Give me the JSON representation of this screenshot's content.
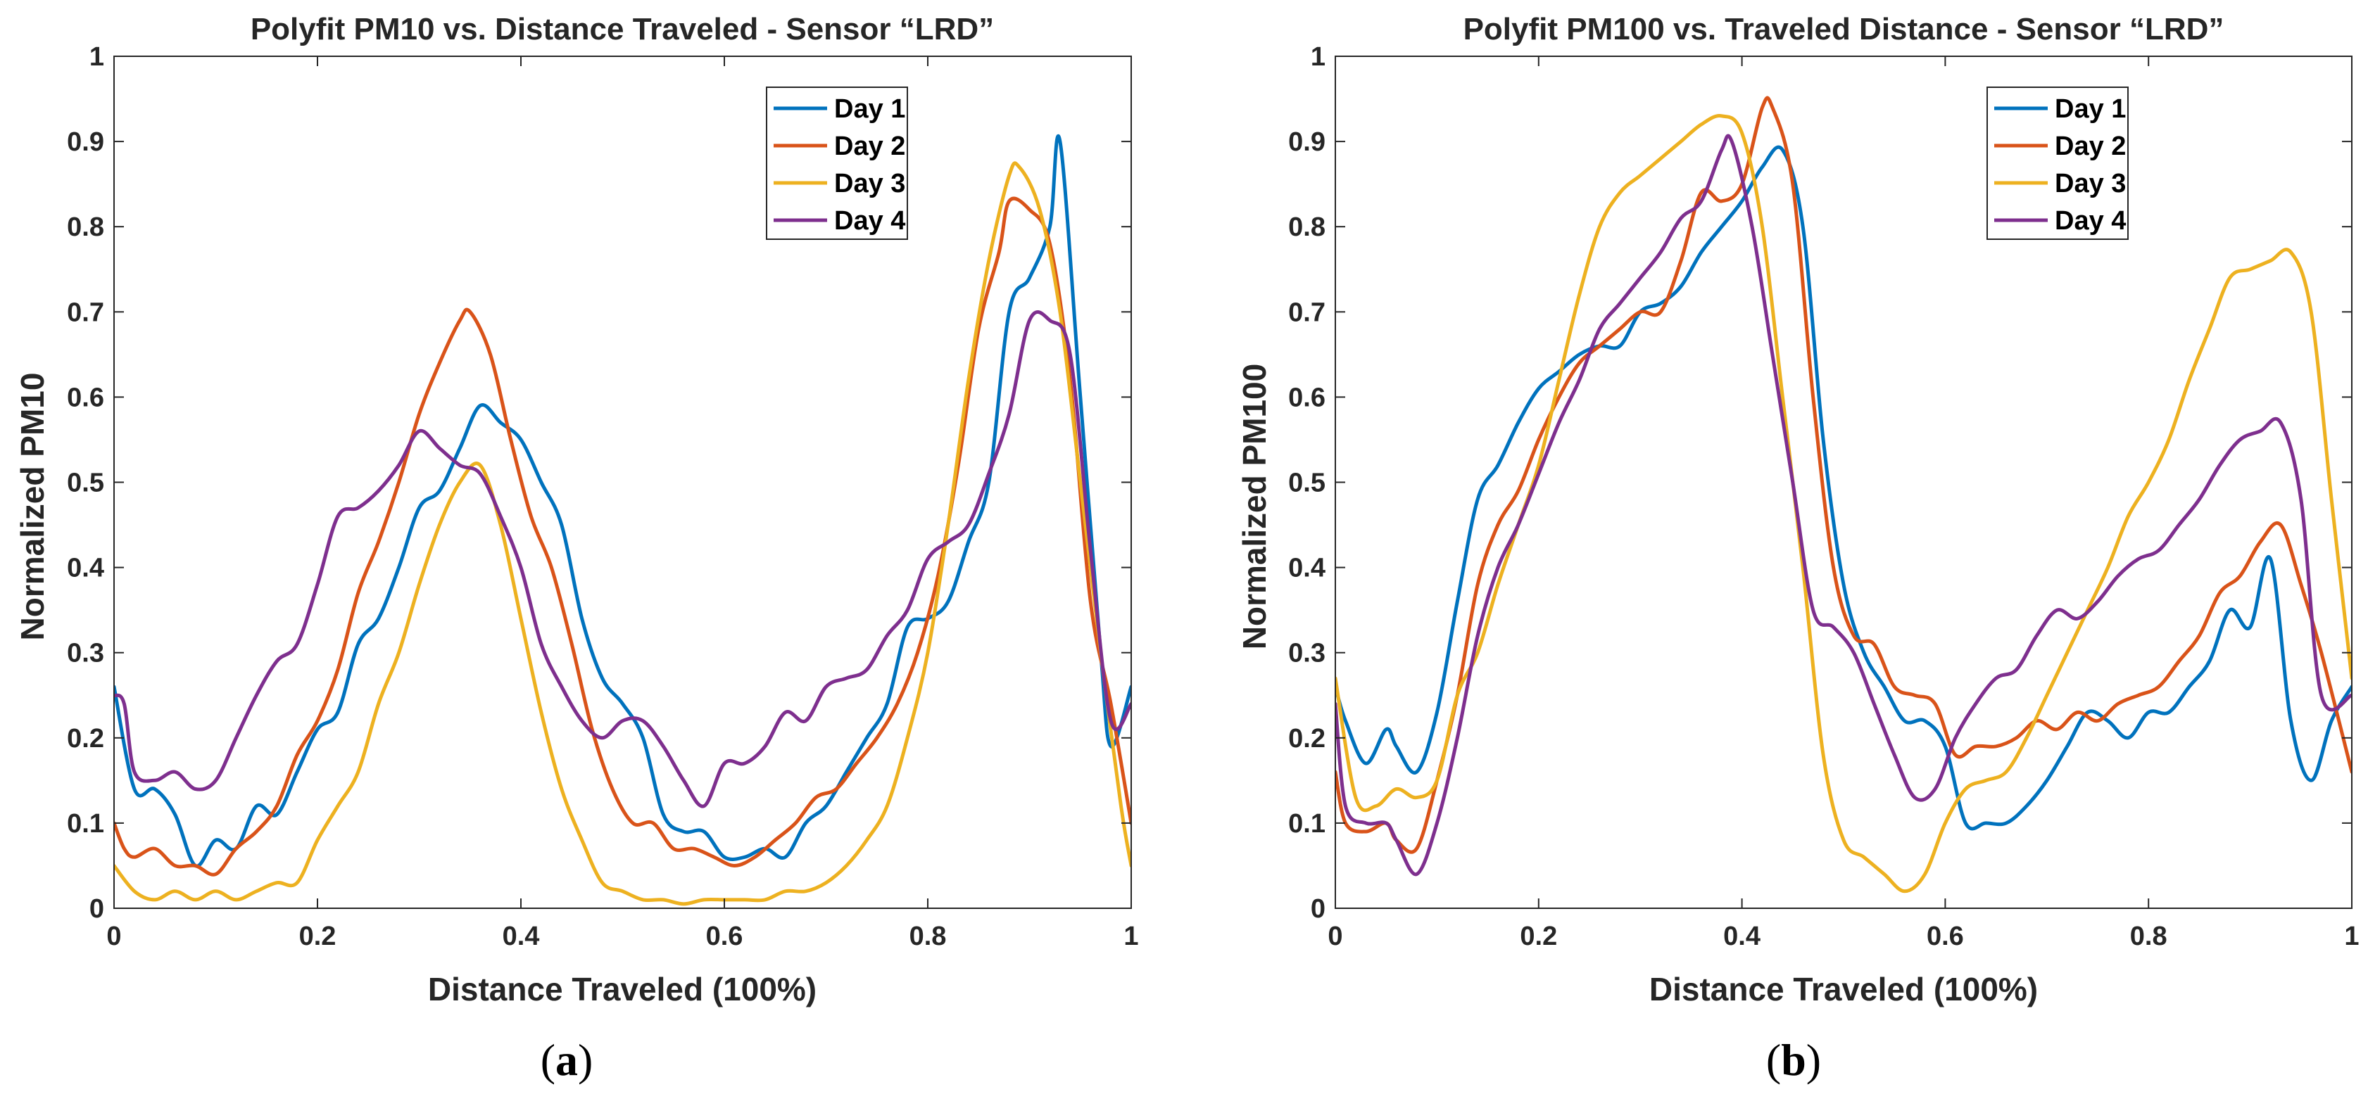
{
  "figure": {
    "panel_labels": [
      {
        "open": "(",
        "letter": "a",
        "close": ")"
      },
      {
        "open": "(",
        "letter": "b",
        "close": ")"
      }
    ]
  },
  "chart_data": [
    {
      "type": "line",
      "title": "Polyfit PM10 vs. Distance Traveled - Sensor “LRD”",
      "xlabel": "Distance Traveled (100%)",
      "ylabel": "Normalized PM10",
      "xlim": [
        0,
        1
      ],
      "ylim": [
        0,
        1
      ],
      "xticks": [
        0,
        0.2,
        0.4,
        0.6,
        0.8,
        1
      ],
      "xtick_labels": [
        "0",
        "0.2",
        "0.4",
        "0.6",
        "0.8",
        "1"
      ],
      "yticks": [
        0,
        0.1,
        0.2,
        0.3,
        0.4,
        0.5,
        0.6,
        0.7,
        0.8,
        0.9,
        1
      ],
      "ytick_labels": [
        "0",
        "0.1",
        "0.2",
        "0.3",
        "0.4",
        "0.5",
        "0.6",
        "0.7",
        "0.8",
        "0.9",
        "1"
      ],
      "legend_location": "top-right",
      "series": [
        {
          "name": "Day 1",
          "color": "#0072BD",
          "x": [
            0,
            0.02,
            0.04,
            0.06,
            0.08,
            0.1,
            0.12,
            0.14,
            0.16,
            0.18,
            0.2,
            0.22,
            0.24,
            0.26,
            0.28,
            0.3,
            0.32,
            0.34,
            0.36,
            0.38,
            0.4,
            0.42,
            0.44,
            0.46,
            0.48,
            0.5,
            0.52,
            0.54,
            0.56,
            0.58,
            0.6,
            0.62,
            0.64,
            0.66,
            0.68,
            0.7,
            0.72,
            0.74,
            0.76,
            0.78,
            0.8,
            0.82,
            0.84,
            0.86,
            0.88,
            0.9,
            0.92,
            0.93,
            0.95,
            0.97,
            0.98,
            1
          ],
          "y": [
            0.26,
            0.14,
            0.14,
            0.11,
            0.05,
            0.08,
            0.07,
            0.12,
            0.11,
            0.16,
            0.21,
            0.23,
            0.31,
            0.34,
            0.4,
            0.47,
            0.49,
            0.54,
            0.59,
            0.57,
            0.55,
            0.5,
            0.45,
            0.34,
            0.27,
            0.24,
            0.2,
            0.11,
            0.09,
            0.09,
            0.06,
            0.06,
            0.07,
            0.06,
            0.1,
            0.12,
            0.16,
            0.2,
            0.24,
            0.33,
            0.34,
            0.36,
            0.43,
            0.5,
            0.7,
            0.74,
            0.8,
            0.9,
            0.6,
            0.3,
            0.19,
            0.26
          ]
        },
        {
          "name": "Day 2",
          "color": "#D95319",
          "x": [
            0,
            0.01,
            0.02,
            0.04,
            0.06,
            0.08,
            0.1,
            0.12,
            0.14,
            0.16,
            0.18,
            0.2,
            0.22,
            0.24,
            0.26,
            0.28,
            0.3,
            0.32,
            0.34,
            0.35,
            0.37,
            0.39,
            0.41,
            0.43,
            0.45,
            0.47,
            0.49,
            0.51,
            0.53,
            0.55,
            0.57,
            0.59,
            0.61,
            0.63,
            0.65,
            0.67,
            0.69,
            0.71,
            0.73,
            0.75,
            0.77,
            0.79,
            0.81,
            0.83,
            0.85,
            0.87,
            0.88,
            0.9,
            0.92,
            0.94,
            0.96,
            0.98,
            1
          ],
          "y": [
            0.1,
            0.07,
            0.06,
            0.07,
            0.05,
            0.05,
            0.04,
            0.07,
            0.09,
            0.12,
            0.18,
            0.22,
            0.28,
            0.37,
            0.43,
            0.5,
            0.58,
            0.64,
            0.69,
            0.7,
            0.65,
            0.55,
            0.46,
            0.4,
            0.31,
            0.21,
            0.14,
            0.1,
            0.1,
            0.07,
            0.07,
            0.06,
            0.05,
            0.06,
            0.08,
            0.1,
            0.13,
            0.14,
            0.17,
            0.2,
            0.24,
            0.3,
            0.39,
            0.52,
            0.68,
            0.77,
            0.83,
            0.82,
            0.78,
            0.62,
            0.36,
            0.24,
            0.1
          ]
        },
        {
          "name": "Day 3",
          "color": "#EDB120",
          "x": [
            0,
            0.02,
            0.04,
            0.06,
            0.08,
            0.1,
            0.12,
            0.14,
            0.16,
            0.18,
            0.2,
            0.22,
            0.24,
            0.26,
            0.28,
            0.3,
            0.32,
            0.34,
            0.36,
            0.38,
            0.4,
            0.42,
            0.44,
            0.46,
            0.48,
            0.5,
            0.52,
            0.54,
            0.56,
            0.58,
            0.6,
            0.62,
            0.64,
            0.66,
            0.68,
            0.7,
            0.72,
            0.74,
            0.76,
            0.78,
            0.8,
            0.82,
            0.84,
            0.86,
            0.88,
            0.89,
            0.91,
            0.93,
            0.95,
            0.97,
            0.99,
            1
          ],
          "y": [
            0.05,
            0.02,
            0.01,
            0.02,
            0.01,
            0.02,
            0.01,
            0.02,
            0.03,
            0.03,
            0.08,
            0.12,
            0.16,
            0.24,
            0.3,
            0.38,
            0.45,
            0.5,
            0.52,
            0.45,
            0.34,
            0.23,
            0.14,
            0.08,
            0.03,
            0.02,
            0.01,
            0.01,
            0.005,
            0.01,
            0.01,
            0.01,
            0.01,
            0.02,
            0.02,
            0.03,
            0.05,
            0.08,
            0.12,
            0.2,
            0.3,
            0.45,
            0.62,
            0.76,
            0.86,
            0.87,
            0.82,
            0.7,
            0.5,
            0.3,
            0.12,
            0.05
          ]
        },
        {
          "name": "Day 4",
          "color": "#7E2F8E",
          "x": [
            0,
            0.01,
            0.02,
            0.04,
            0.06,
            0.08,
            0.1,
            0.12,
            0.14,
            0.16,
            0.18,
            0.2,
            0.22,
            0.24,
            0.26,
            0.28,
            0.3,
            0.32,
            0.34,
            0.36,
            0.38,
            0.4,
            0.42,
            0.44,
            0.46,
            0.48,
            0.5,
            0.52,
            0.54,
            0.56,
            0.58,
            0.6,
            0.62,
            0.64,
            0.66,
            0.68,
            0.7,
            0.72,
            0.74,
            0.76,
            0.78,
            0.8,
            0.82,
            0.84,
            0.86,
            0.88,
            0.9,
            0.92,
            0.94,
            0.96,
            0.98,
            1
          ],
          "y": [
            0.25,
            0.24,
            0.16,
            0.15,
            0.16,
            0.14,
            0.15,
            0.2,
            0.25,
            0.29,
            0.31,
            0.38,
            0.46,
            0.47,
            0.49,
            0.52,
            0.56,
            0.54,
            0.52,
            0.51,
            0.46,
            0.4,
            0.31,
            0.26,
            0.22,
            0.2,
            0.22,
            0.22,
            0.19,
            0.15,
            0.12,
            0.17,
            0.17,
            0.19,
            0.23,
            0.22,
            0.26,
            0.27,
            0.28,
            0.32,
            0.35,
            0.41,
            0.43,
            0.45,
            0.51,
            0.58,
            0.69,
            0.69,
            0.65,
            0.42,
            0.22,
            0.24
          ]
        }
      ]
    },
    {
      "type": "line",
      "title": "Polyfit PM100 vs. Traveled Distance - Sensor “LRD”",
      "xlabel": "Distance Traveled (100%)",
      "ylabel": "Normalized PM100",
      "xlim": [
        0,
        1
      ],
      "ylim": [
        0,
        1
      ],
      "xticks": [
        0,
        0.2,
        0.4,
        0.6,
        0.8,
        1
      ],
      "xtick_labels": [
        "0",
        "0.2",
        "0.4",
        "0.6",
        "0.8",
        "1"
      ],
      "yticks": [
        0,
        0.1,
        0.2,
        0.3,
        0.4,
        0.5,
        0.6,
        0.7,
        0.8,
        0.9,
        1
      ],
      "ytick_labels": [
        "0",
        "0.1",
        "0.2",
        "0.3",
        "0.4",
        "0.5",
        "0.6",
        "0.7",
        "0.8",
        "0.9",
        "1"
      ],
      "legend_location": "top-right",
      "series": [
        {
          "name": "Day 1",
          "color": "#0072BD",
          "x": [
            0,
            0.01,
            0.03,
            0.05,
            0.06,
            0.08,
            0.1,
            0.12,
            0.14,
            0.16,
            0.18,
            0.2,
            0.22,
            0.24,
            0.26,
            0.28,
            0.3,
            0.32,
            0.34,
            0.36,
            0.38,
            0.4,
            0.42,
            0.44,
            0.46,
            0.48,
            0.5,
            0.52,
            0.54,
            0.56,
            0.58,
            0.6,
            0.62,
            0.64,
            0.66,
            0.68,
            0.7,
            0.72,
            0.74,
            0.76,
            0.78,
            0.8,
            0.82,
            0.84,
            0.86,
            0.88,
            0.9,
            0.92,
            0.94,
            0.96,
            0.98,
            1
          ],
          "y": [
            0.26,
            0.22,
            0.17,
            0.21,
            0.19,
            0.16,
            0.23,
            0.36,
            0.48,
            0.52,
            0.57,
            0.61,
            0.63,
            0.65,
            0.66,
            0.66,
            0.7,
            0.71,
            0.73,
            0.77,
            0.8,
            0.83,
            0.87,
            0.89,
            0.8,
            0.55,
            0.38,
            0.3,
            0.26,
            0.22,
            0.22,
            0.19,
            0.1,
            0.1,
            0.1,
            0.12,
            0.15,
            0.19,
            0.23,
            0.22,
            0.2,
            0.23,
            0.23,
            0.26,
            0.29,
            0.35,
            0.33,
            0.41,
            0.22,
            0.15,
            0.22,
            0.26
          ]
        },
        {
          "name": "Day 2",
          "color": "#D95319",
          "x": [
            0,
            0.01,
            0.03,
            0.05,
            0.06,
            0.08,
            0.1,
            0.12,
            0.14,
            0.16,
            0.18,
            0.2,
            0.22,
            0.24,
            0.26,
            0.28,
            0.3,
            0.32,
            0.34,
            0.36,
            0.38,
            0.4,
            0.42,
            0.43,
            0.45,
            0.47,
            0.49,
            0.51,
            0.53,
            0.55,
            0.57,
            0.59,
            0.61,
            0.63,
            0.65,
            0.67,
            0.69,
            0.71,
            0.73,
            0.75,
            0.77,
            0.79,
            0.81,
            0.83,
            0.85,
            0.87,
            0.89,
            0.91,
            0.93,
            0.95,
            0.97,
            1
          ],
          "y": [
            0.16,
            0.1,
            0.09,
            0.1,
            0.08,
            0.07,
            0.15,
            0.25,
            0.38,
            0.45,
            0.49,
            0.55,
            0.6,
            0.64,
            0.66,
            0.68,
            0.7,
            0.7,
            0.76,
            0.84,
            0.83,
            0.85,
            0.94,
            0.94,
            0.85,
            0.6,
            0.4,
            0.32,
            0.31,
            0.26,
            0.25,
            0.24,
            0.18,
            0.19,
            0.19,
            0.2,
            0.22,
            0.21,
            0.23,
            0.22,
            0.24,
            0.25,
            0.26,
            0.29,
            0.32,
            0.37,
            0.39,
            0.43,
            0.45,
            0.38,
            0.3,
            0.16
          ]
        },
        {
          "name": "Day 3",
          "color": "#EDB120",
          "x": [
            0,
            0.02,
            0.04,
            0.06,
            0.08,
            0.1,
            0.12,
            0.14,
            0.16,
            0.18,
            0.2,
            0.22,
            0.24,
            0.26,
            0.28,
            0.3,
            0.32,
            0.34,
            0.36,
            0.38,
            0.4,
            0.42,
            0.44,
            0.46,
            0.48,
            0.5,
            0.52,
            0.54,
            0.56,
            0.58,
            0.6,
            0.62,
            0.64,
            0.66,
            0.68,
            0.7,
            0.72,
            0.74,
            0.76,
            0.78,
            0.8,
            0.82,
            0.84,
            0.86,
            0.88,
            0.9,
            0.92,
            0.94,
            0.96,
            0.98,
            1
          ],
          "y": [
            0.27,
            0.13,
            0.12,
            0.14,
            0.13,
            0.15,
            0.25,
            0.3,
            0.38,
            0.45,
            0.52,
            0.62,
            0.72,
            0.8,
            0.84,
            0.86,
            0.88,
            0.9,
            0.92,
            0.93,
            0.91,
            0.8,
            0.6,
            0.4,
            0.18,
            0.08,
            0.06,
            0.04,
            0.02,
            0.04,
            0.1,
            0.14,
            0.15,
            0.16,
            0.2,
            0.25,
            0.3,
            0.35,
            0.4,
            0.46,
            0.5,
            0.55,
            0.62,
            0.68,
            0.74,
            0.75,
            0.76,
            0.77,
            0.7,
            0.48,
            0.27
          ]
        },
        {
          "name": "Day 4",
          "color": "#7E2F8E",
          "x": [
            0,
            0.01,
            0.03,
            0.05,
            0.06,
            0.08,
            0.1,
            0.12,
            0.14,
            0.16,
            0.18,
            0.2,
            0.22,
            0.24,
            0.26,
            0.28,
            0.3,
            0.32,
            0.34,
            0.36,
            0.38,
            0.39,
            0.41,
            0.43,
            0.45,
            0.47,
            0.49,
            0.51,
            0.53,
            0.55,
            0.57,
            0.59,
            0.61,
            0.63,
            0.65,
            0.67,
            0.69,
            0.71,
            0.73,
            0.75,
            0.77,
            0.79,
            0.81,
            0.83,
            0.85,
            0.87,
            0.89,
            0.91,
            0.93,
            0.95,
            0.97,
            1
          ],
          "y": [
            0.24,
            0.12,
            0.1,
            0.1,
            0.08,
            0.04,
            0.1,
            0.2,
            0.32,
            0.4,
            0.45,
            0.51,
            0.57,
            0.62,
            0.68,
            0.71,
            0.74,
            0.77,
            0.81,
            0.83,
            0.89,
            0.9,
            0.8,
            0.65,
            0.5,
            0.35,
            0.33,
            0.3,
            0.24,
            0.18,
            0.13,
            0.14,
            0.2,
            0.24,
            0.27,
            0.28,
            0.32,
            0.35,
            0.34,
            0.36,
            0.39,
            0.41,
            0.42,
            0.45,
            0.48,
            0.52,
            0.55,
            0.56,
            0.57,
            0.48,
            0.25,
            0.25
          ]
        }
      ]
    }
  ]
}
